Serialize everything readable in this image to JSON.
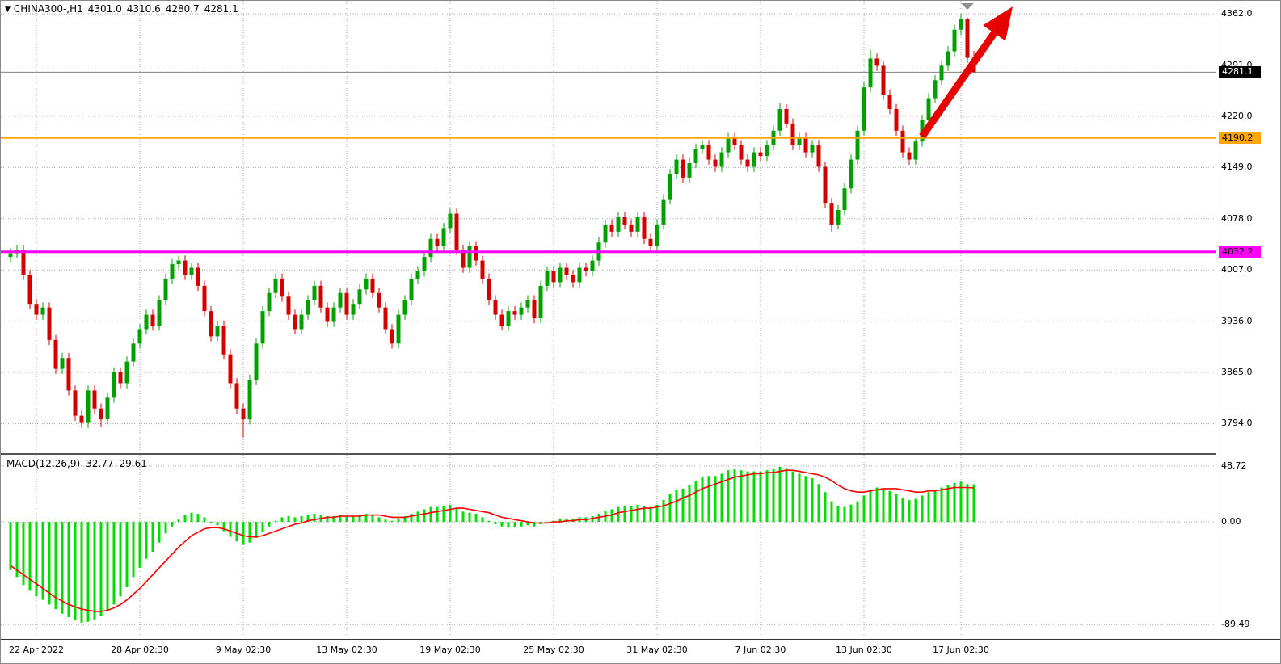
{
  "header": {
    "dropdown_icon": "▼",
    "title": "CHINA300-,H1",
    "open": "4301.0",
    "high": "4310.6",
    "low": "4280.7",
    "close": "4281.1"
  },
  "macd_panel": {
    "label": "MACD(12,26,9)",
    "main_value": "32.77",
    "signal_value": "29.61",
    "scale_labels": [
      "48.72",
      "0.00",
      "-89.49"
    ]
  },
  "price_scale": {
    "tick_labels": [
      "4362.0",
      "4291.0",
      "4220.0",
      "4149.0",
      "4078.0",
      "4007.0",
      "3936.0",
      "3865.0",
      "3794.0"
    ],
    "bid_badge": "4281.1",
    "orange_badge": "4190.2",
    "magenta_badge": "4032.2"
  },
  "colors": {
    "bull": "#00a000",
    "bear": "#d40000",
    "histogram": "#00dd00",
    "signal_line": "#ff0000",
    "orange_level": "#ffa500",
    "magenta_level": "#ff00ff",
    "grid": "#aaaaaa",
    "bid_line": "#808080",
    "arrow": "#e60000",
    "shift_marker": "#909090"
  },
  "chart_data": {
    "type": "candlestick",
    "symbol": "CHINA300-",
    "timeframe": "H1",
    "current_ohlc": {
      "open": 4301.0,
      "high": 4310.6,
      "low": 4280.7,
      "close": 4281.1
    },
    "ylim": [
      3752,
      4380
    ],
    "price_ticks": [
      4362,
      4291,
      4220,
      4149,
      4078,
      4007,
      3936,
      3865,
      3794
    ],
    "bid_price": 4281.1,
    "levels": [
      {
        "price": 4190.2,
        "color": "#ffa500",
        "label": "4190.2",
        "width": 2.5
      },
      {
        "price": 4032.2,
        "color": "#ff00ff",
        "label": "4032.2",
        "width": 3
      }
    ],
    "time_labels": [
      {
        "label": "22 Apr 2022",
        "candle": 4
      },
      {
        "label": "28 Apr 02:30",
        "candle": 20
      },
      {
        "label": "9 May 02:30",
        "candle": 36
      },
      {
        "label": "13 May 02:30",
        "candle": 52
      },
      {
        "label": "19 May 02:30",
        "candle": 68
      },
      {
        "label": "25 May 02:30",
        "candle": 84
      },
      {
        "label": "31 May 02:30",
        "candle": 100
      },
      {
        "label": "7 Jun 02:30",
        "candle": 116
      },
      {
        "label": "13 Jun 02:30",
        "candle": 132
      },
      {
        "label": "17 Jun 02:30",
        "candle": 147
      }
    ],
    "ohlc": [
      [
        4025,
        4037,
        4018,
        4030
      ],
      [
        4030,
        4042,
        4023,
        4035
      ],
      [
        4035,
        4042,
        3993,
        4000
      ],
      [
        4000,
        4007,
        3953,
        3960
      ],
      [
        3960,
        3967,
        3938,
        3945
      ],
      [
        3945,
        3962,
        3938,
        3955
      ],
      [
        3955,
        3962,
        3903,
        3910
      ],
      [
        3910,
        3917,
        3863,
        3870
      ],
      [
        3870,
        3892,
        3863,
        3885
      ],
      [
        3885,
        3892,
        3833,
        3840
      ],
      [
        3840,
        3847,
        3798,
        3805
      ],
      [
        3805,
        3812,
        3788,
        3795
      ],
      [
        3795,
        3847,
        3788,
        3840
      ],
      [
        3840,
        3847,
        3808,
        3815
      ],
      [
        3815,
        3822,
        3790,
        3800
      ],
      [
        3800,
        3837,
        3793,
        3830
      ],
      [
        3830,
        3872,
        3823,
        3865
      ],
      [
        3865,
        3872,
        3843,
        3850
      ],
      [
        3850,
        3887,
        3843,
        3880
      ],
      [
        3880,
        3912,
        3873,
        3905
      ],
      [
        3905,
        3932,
        3898,
        3925
      ],
      [
        3925,
        3952,
        3918,
        3945
      ],
      [
        3945,
        3952,
        3923,
        3930
      ],
      [
        3930,
        3972,
        3923,
        3965
      ],
      [
        3965,
        4002,
        3958,
        3995
      ],
      [
        3995,
        4022,
        3988,
        4015
      ],
      [
        4015,
        4027,
        4008,
        4020
      ],
      [
        4020,
        4027,
        3993,
        4000
      ],
      [
        4000,
        4017,
        3993,
        4010
      ],
      [
        4010,
        4017,
        3978,
        3985
      ],
      [
        3985,
        3992,
        3943,
        3950
      ],
      [
        3950,
        3957,
        3908,
        3915
      ],
      [
        3915,
        3937,
        3908,
        3930
      ],
      [
        3930,
        3937,
        3883,
        3890
      ],
      [
        3890,
        3897,
        3843,
        3850
      ],
      [
        3850,
        3857,
        3808,
        3815
      ],
      [
        3815,
        3822,
        3775,
        3800
      ],
      [
        3800,
        3862,
        3793,
        3855
      ],
      [
        3855,
        3912,
        3848,
        3905
      ],
      [
        3905,
        3957,
        3898,
        3950
      ],
      [
        3950,
        3982,
        3943,
        3975
      ],
      [
        3975,
        4002,
        3968,
        3995
      ],
      [
        3995,
        4002,
        3963,
        3970
      ],
      [
        3970,
        3977,
        3938,
        3945
      ],
      [
        3945,
        3952,
        3918,
        3925
      ],
      [
        3925,
        3952,
        3918,
        3945
      ],
      [
        3945,
        3972,
        3938,
        3965
      ],
      [
        3965,
        3992,
        3958,
        3985
      ],
      [
        3985,
        3992,
        3948,
        3955
      ],
      [
        3955,
        3962,
        3928,
        3935
      ],
      [
        3935,
        3962,
        3928,
        3955
      ],
      [
        3955,
        3982,
        3948,
        3975
      ],
      [
        3975,
        3982,
        3938,
        3945
      ],
      [
        3945,
        3967,
        3938,
        3960
      ],
      [
        3960,
        3987,
        3953,
        3980
      ],
      [
        3980,
        4002,
        3973,
        3995
      ],
      [
        3995,
        4002,
        3968,
        3975
      ],
      [
        3975,
        3982,
        3948,
        3955
      ],
      [
        3955,
        3962,
        3918,
        3925
      ],
      [
        3925,
        3932,
        3898,
        3905
      ],
      [
        3905,
        3952,
        3898,
        3945
      ],
      [
        3945,
        3972,
        3938,
        3965
      ],
      [
        3965,
        4002,
        3958,
        3995
      ],
      [
        3995,
        4012,
        3988,
        4005
      ],
      [
        4005,
        4032,
        3998,
        4025
      ],
      [
        4025,
        4057,
        4018,
        4050
      ],
      [
        4050,
        4057,
        4033,
        4040
      ],
      [
        4040,
        4072,
        4033,
        4065
      ],
      [
        4065,
        4092,
        4058,
        4085
      ],
      [
        4085,
        4092,
        4028,
        4035
      ],
      [
        4035,
        4042,
        4003,
        4010
      ],
      [
        4010,
        4047,
        4003,
        4040
      ],
      [
        4040,
        4047,
        4013,
        4020
      ],
      [
        4020,
        4027,
        3988,
        3995
      ],
      [
        3995,
        4002,
        3958,
        3965
      ],
      [
        3965,
        3972,
        3938,
        3945
      ],
      [
        3945,
        3952,
        3923,
        3930
      ],
      [
        3930,
        3957,
        3923,
        3950
      ],
      [
        3950,
        3957,
        3938,
        3945
      ],
      [
        3945,
        3962,
        3938,
        3955
      ],
      [
        3955,
        3972,
        3948,
        3965
      ],
      [
        3965,
        3972,
        3933,
        3940
      ],
      [
        3940,
        3992,
        3933,
        3985
      ],
      [
        3985,
        4012,
        3978,
        4005
      ],
      [
        4005,
        4012,
        3983,
        3990
      ],
      [
        3990,
        4017,
        3983,
        4010
      ],
      [
        4010,
        4017,
        3993,
        4000
      ],
      [
        4000,
        4007,
        3983,
        3990
      ],
      [
        3990,
        4017,
        3983,
        4010
      ],
      [
        4010,
        4017,
        3998,
        4005
      ],
      [
        4005,
        4027,
        3998,
        4020
      ],
      [
        4020,
        4052,
        4013,
        4045
      ],
      [
        4045,
        4077,
        4038,
        4070
      ],
      [
        4070,
        4077,
        4053,
        4060
      ],
      [
        4060,
        4087,
        4053,
        4080
      ],
      [
        4080,
        4087,
        4063,
        4070
      ],
      [
        4070,
        4077,
        4053,
        4060
      ],
      [
        4060,
        4087,
        4053,
        4080
      ],
      [
        4080,
        4087,
        4043,
        4050
      ],
      [
        4050,
        4057,
        4033,
        4040
      ],
      [
        4040,
        4077,
        4033,
        4070
      ],
      [
        4070,
        4112,
        4063,
        4105
      ],
      [
        4105,
        4147,
        4098,
        4140
      ],
      [
        4140,
        4167,
        4133,
        4160
      ],
      [
        4160,
        4167,
        4128,
        4135
      ],
      [
        4135,
        4162,
        4128,
        4155
      ],
      [
        4155,
        4182,
        4148,
        4175
      ],
      [
        4175,
        4187,
        4168,
        4180
      ],
      [
        4180,
        4187,
        4153,
        4160
      ],
      [
        4160,
        4167,
        4143,
        4150
      ],
      [
        4150,
        4177,
        4143,
        4170
      ],
      [
        4170,
        4197,
        4163,
        4190
      ],
      [
        4190,
        4197,
        4173,
        4180
      ],
      [
        4180,
        4187,
        4153,
        4160
      ],
      [
        4160,
        4167,
        4143,
        4150
      ],
      [
        4150,
        4177,
        4143,
        4170
      ],
      [
        4170,
        4177,
        4158,
        4165
      ],
      [
        4165,
        4187,
        4158,
        4180
      ],
      [
        4180,
        4207,
        4173,
        4200
      ],
      [
        4200,
        4238,
        4193,
        4230
      ],
      [
        4230,
        4237,
        4203,
        4210
      ],
      [
        4210,
        4217,
        4173,
        4180
      ],
      [
        4180,
        4197,
        4173,
        4190
      ],
      [
        4190,
        4197,
        4163,
        4170
      ],
      [
        4170,
        4187,
        4163,
        4180
      ],
      [
        4180,
        4187,
        4143,
        4150
      ],
      [
        4150,
        4157,
        4093,
        4100
      ],
      [
        4100,
        4107,
        4060,
        4070
      ],
      [
        4070,
        4097,
        4063,
        4090
      ],
      [
        4090,
        4127,
        4083,
        4120
      ],
      [
        4120,
        4167,
        4113,
        4160
      ],
      [
        4160,
        4207,
        4153,
        4200
      ],
      [
        4200,
        4267,
        4193,
        4260
      ],
      [
        4260,
        4312,
        4253,
        4300
      ],
      [
        4300,
        4307,
        4283,
        4290
      ],
      [
        4290,
        4297,
        4243,
        4250
      ],
      [
        4250,
        4257,
        4223,
        4230
      ],
      [
        4230,
        4237,
        4193,
        4200
      ],
      [
        4200,
        4207,
        4163,
        4170
      ],
      [
        4170,
        4177,
        4153,
        4160
      ],
      [
        4160,
        4192,
        4153,
        4185
      ],
      [
        4185,
        4222,
        4178,
        4215
      ],
      [
        4215,
        4252,
        4208,
        4245
      ],
      [
        4245,
        4277,
        4238,
        4270
      ],
      [
        4270,
        4297,
        4263,
        4290
      ],
      [
        4290,
        4317,
        4283,
        4310
      ],
      [
        4310,
        4347,
        4303,
        4340
      ],
      [
        4340,
        4362,
        4333,
        4355
      ],
      [
        4355,
        4357,
        4294,
        4301
      ],
      [
        4301,
        4310.6,
        4280.7,
        4281.1
      ]
    ],
    "indicator": {
      "name": "MACD",
      "params": "12,26,9",
      "ylim": [
        -102,
        58.5
      ],
      "ticks": [
        48.72,
        0,
        -89.49
      ],
      "last_main": 32.77,
      "last_signal": 29.61,
      "histogram": [
        -42,
        -48,
        -55,
        -60,
        -65,
        -68,
        -72,
        -76,
        -80,
        -83,
        -86,
        -88,
        -87,
        -85,
        -82,
        -78,
        -72,
        -65,
        -57,
        -48,
        -40,
        -32,
        -26,
        -18,
        -10,
        -4,
        2,
        6,
        8,
        7,
        4,
        0,
        -3,
        -8,
        -13,
        -17,
        -20,
        -18,
        -14,
        -9,
        -4,
        1,
        4,
        5,
        4,
        5,
        6,
        7,
        6,
        5,
        5,
        6,
        5,
        5,
        6,
        7,
        6,
        4,
        2,
        1,
        3,
        5,
        7,
        9,
        11,
        13,
        13,
        14,
        15,
        12,
        9,
        8,
        7,
        4,
        1,
        -2,
        -4,
        -5,
        -5,
        -4,
        -3,
        -4,
        -2,
        0,
        1,
        3,
        3,
        3,
        4,
        4,
        5,
        7,
        10,
        11,
        13,
        14,
        14,
        15,
        14,
        13,
        15,
        19,
        24,
        28,
        29,
        32,
        36,
        39,
        40,
        40,
        42,
        45,
        46,
        45,
        44,
        44,
        44,
        45,
        46,
        48,
        47,
        44,
        42,
        40,
        38,
        33,
        26,
        18,
        14,
        13,
        15,
        18,
        23,
        28,
        30,
        29,
        27,
        24,
        21,
        19,
        20,
        23,
        26,
        28,
        30,
        32,
        34,
        35,
        33,
        32.77
      ],
      "signal": [
        -38,
        -42,
        -46,
        -50,
        -54,
        -58,
        -62,
        -66,
        -69,
        -72,
        -74,
        -76,
        -77,
        -78,
        -78,
        -77,
        -75,
        -72,
        -68,
        -63,
        -58,
        -52,
        -46,
        -40,
        -34,
        -28,
        -22,
        -17,
        -12,
        -9,
        -6,
        -5,
        -5,
        -6,
        -8,
        -10,
        -12,
        -13,
        -13,
        -12,
        -10,
        -8,
        -6,
        -4,
        -2,
        -1,
        1,
        2,
        3,
        4,
        4,
        5,
        5,
        5,
        5,
        6,
        6,
        6,
        5,
        4,
        4,
        4,
        5,
        6,
        7,
        8,
        9,
        10,
        11,
        12,
        12,
        11,
        10,
        9,
        8,
        6,
        4,
        3,
        2,
        1,
        0,
        -1,
        -1,
        -1,
        0,
        0,
        1,
        1,
        2,
        2,
        3,
        4,
        5,
        6,
        8,
        9,
        10,
        11,
        12,
        12,
        13,
        14,
        16,
        18,
        21,
        23,
        26,
        29,
        31,
        33,
        35,
        37,
        39,
        40,
        41,
        42,
        42,
        43,
        43,
        44,
        45,
        45,
        44,
        43,
        42,
        41,
        39,
        36,
        32,
        29,
        27,
        26,
        26,
        27,
        28,
        29,
        29,
        29,
        28,
        27,
        26,
        26,
        27,
        27,
        28,
        29,
        30,
        30,
        30,
        29.61
      ]
    },
    "annotations": [
      {
        "type": "arrow",
        "from": {
          "candle": 141,
          "price": 4192
        },
        "to": {
          "candle": 155,
          "price": 4372
        },
        "color": "#e60000"
      }
    ]
  }
}
